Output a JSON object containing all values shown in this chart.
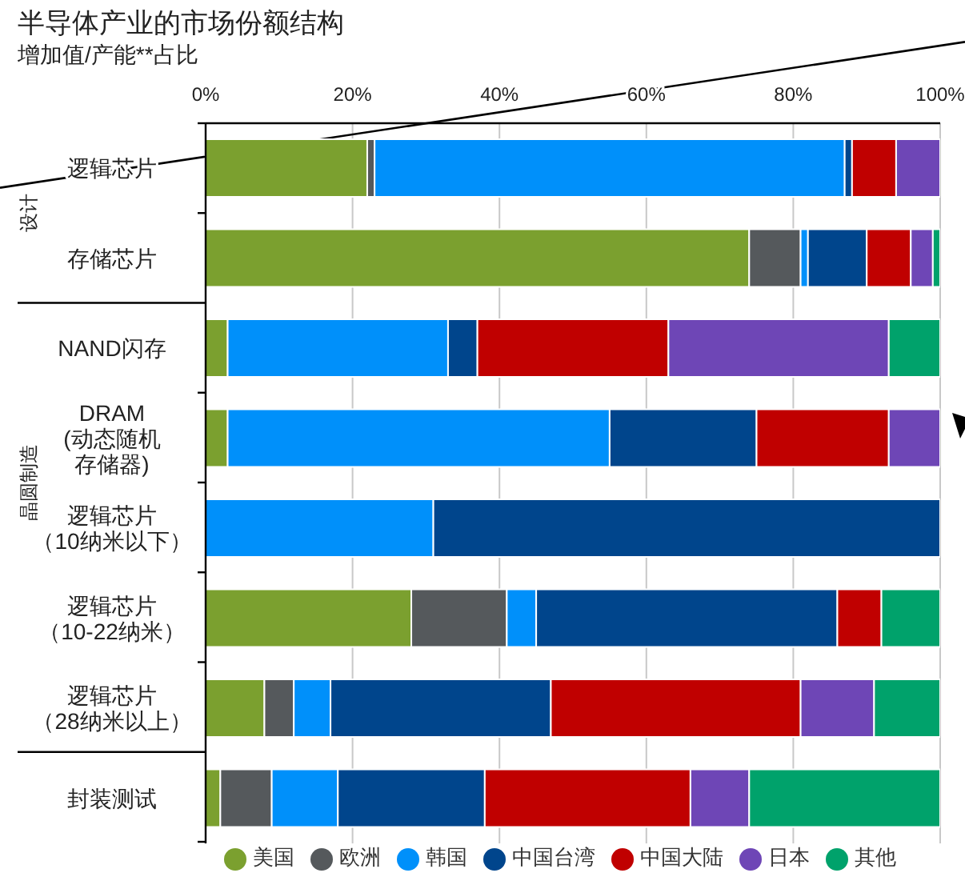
{
  "chart_data": {
    "type": "bar",
    "orientation": "horizontal",
    "stacked": true,
    "title": "半导体产业的市场份额结构",
    "subtitle": "增加值/产能**占比",
    "categories": [
      "逻辑芯片",
      "存储芯片",
      "NAND闪存",
      "DRAM (动态随机存储器)",
      "逻辑芯片（10纳米以下）",
      "逻辑芯片（10-22纳米）",
      "逻辑芯片（28纳米以上）",
      "封装测试"
    ],
    "series": [
      {
        "name": "美国",
        "color": "#7ba02f",
        "values": [
          22,
          74,
          3,
          3,
          0,
          28,
          8,
          2
        ]
      },
      {
        "name": "欧洲",
        "color": "#55595c",
        "values": [
          1,
          7,
          0,
          0,
          0,
          13,
          4,
          7
        ]
      },
      {
        "name": "韩国",
        "color": "#0090fa",
        "values": [
          64,
          1,
          30,
          52,
          31,
          4,
          5,
          9
        ]
      },
      {
        "name": "中国台湾",
        "color": "#00458c",
        "values": [
          1,
          8,
          4,
          20,
          69,
          41,
          30,
          20
        ]
      },
      {
        "name": "中国大陆",
        "color": "#c00000",
        "values": [
          6,
          6,
          26,
          18,
          0,
          6,
          34,
          28
        ]
      },
      {
        "name": "日本",
        "color": "#6e46b6",
        "values": [
          6,
          3,
          30,
          7,
          0,
          0,
          10,
          8
        ]
      },
      {
        "name": "其他",
        "color": "#00a26b",
        "values": [
          0,
          1,
          7,
          0,
          0,
          8,
          9,
          26
        ]
      }
    ],
    "xlim": [
      0,
      100
    ],
    "xticks": [
      {
        "value": 0,
        "label": "0%"
      },
      {
        "value": 20,
        "label": "20%"
      },
      {
        "value": 40,
        "label": "40%"
      },
      {
        "value": 60,
        "label": "60%"
      },
      {
        "value": 80,
        "label": "80%"
      },
      {
        "value": 100,
        "label": "100%"
      }
    ],
    "grid": "x",
    "legend": "bottom",
    "annotations": [
      "设计",
      "晶圆制造"
    ]
  }
}
